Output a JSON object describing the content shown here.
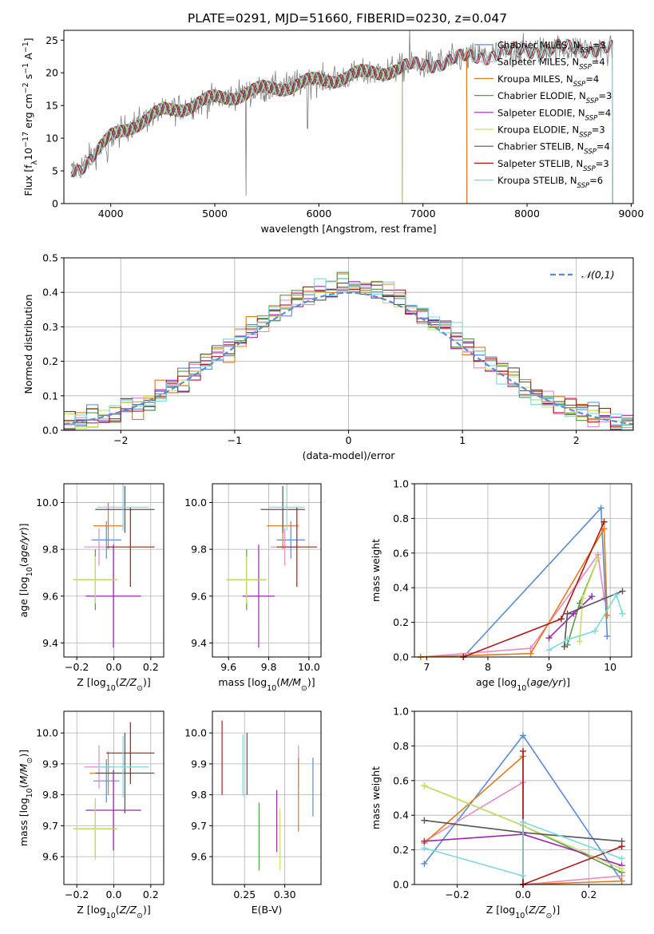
{
  "colors": {
    "Chabrier MILES": "#5b8bd6",
    "Salpeter MILES": "#e68ac3",
    "Kroupa MILES": "#e07b18",
    "Chabrier ELODIE": "#5a9a47",
    "Salpeter ELODIE": "#9b27b0",
    "Kroupa ELODIE": "#c9e067",
    "Chabrier STELIB": "#555555",
    "Salpeter STELIB": "#b01818",
    "Kroupa STELIB": "#7fd8dc"
  },
  "chart_data": [
    {
      "id": "spectrum",
      "type": "line",
      "title": "PLATE=0291, MJD=51660, FIBERID=0230, z=0.047",
      "xlabel": "wavelength [Angstrom, rest frame]",
      "ylabel": "Flux [f_λ10^-17 erg cm^-2 s^-1 A^-1]",
      "xlim": [
        3550,
        9020
      ],
      "ylim": [
        0,
        26.5
      ],
      "xticks": [
        4000,
        5000,
        6000,
        7000,
        8000,
        9000
      ],
      "yticks": [
        0,
        5,
        10,
        15,
        20,
        25
      ],
      "legend_position": "top-right",
      "legend": [
        {
          "name": "Chabrier MILES",
          "nssp": "3"
        },
        {
          "name": "Salpeter MILES",
          "nssp": "4"
        },
        {
          "name": "Kroupa MILES",
          "nssp": "4"
        },
        {
          "name": "Chabrier ELODIE",
          "nssp": "3"
        },
        {
          "name": "Salpeter ELODIE",
          "nssp": "4"
        },
        {
          "name": "Kroupa ELODIE",
          "nssp": "3"
        },
        {
          "name": "Chabrier STELIB",
          "nssp": "4"
        },
        {
          "name": "Salpeter STELIB",
          "nssp": "3"
        },
        {
          "name": "Kroupa STELIB",
          "nssp": "6"
        }
      ],
      "continuum": [
        [
          3620,
          5.0
        ],
        [
          3700,
          5.5
        ],
        [
          3800,
          7.0
        ],
        [
          3900,
          8.5
        ],
        [
          4000,
          10.0
        ],
        [
          4200,
          12.0
        ],
        [
          4500,
          14.0
        ],
        [
          5000,
          16.0
        ],
        [
          5500,
          17.5
        ],
        [
          6000,
          18.8
        ],
        [
          6500,
          20.0
        ],
        [
          7000,
          21.2
        ],
        [
          7500,
          22.5
        ],
        [
          8000,
          23.5
        ],
        [
          8500,
          23.8
        ],
        [
          8800,
          23.5
        ]
      ],
      "model_ranges": {
        "Chabrier MILES": [
          3620,
          7420
        ],
        "Salpeter MILES": [
          3620,
          7420
        ],
        "Kroupa MILES": [
          3620,
          7420
        ],
        "Chabrier ELODIE": [
          3880,
          6800
        ],
        "Salpeter ELODIE": [
          3880,
          6800
        ],
        "Kroupa ELODIE": [
          3880,
          6800
        ],
        "Chabrier STELIB": [
          3620,
          8820
        ],
        "Salpeter STELIB": [
          3620,
          8820
        ],
        "Kroupa STELIB": [
          3620,
          8820
        ]
      }
    },
    {
      "id": "residuals",
      "type": "line",
      "xlabel": "(data-model)/error",
      "ylabel": "Normed distribution",
      "xlim": [
        -2.5,
        2.5
      ],
      "ylim": [
        0,
        0.5
      ],
      "xticks": [
        -2,
        -1,
        0,
        1,
        2
      ],
      "yticks": [
        0.0,
        0.1,
        0.2,
        0.3,
        0.4,
        0.5
      ],
      "grid": true,
      "legend_position": "top-right",
      "reference_curve": {
        "name": "𝒩(0,1)",
        "mean": 0,
        "sigma": 1
      },
      "bin_width": 0.1
    },
    {
      "id": "age_vs_Z",
      "type": "scatter",
      "xlabel": "Z [log10(Z/Z⊙)]",
      "ylabel": "age  [log10(age/yr)]",
      "xlim": [
        -0.27,
        0.27
      ],
      "ylim": [
        9.34,
        10.08
      ],
      "xticks": [
        -0.2,
        0.0,
        0.2
      ],
      "yticks": [
        9.4,
        9.6,
        9.8,
        10.0
      ],
      "grid": true,
      "points": [
        {
          "model": "Chabrier MILES",
          "x": -0.04,
          "xerr": 0.08,
          "y": 9.84,
          "yerr": 0.08
        },
        {
          "model": "Salpeter MILES",
          "x": -0.08,
          "xerr": 0.08,
          "y": 9.81,
          "yerr": 0.08
        },
        {
          "model": "Kroupa MILES",
          "x": -0.03,
          "xerr": 0.08,
          "y": 9.9,
          "yerr": 0.1
        },
        {
          "model": "Chabrier ELODIE",
          "x": -0.1,
          "xerr": 0.12,
          "y": 9.67,
          "yerr": 0.13
        },
        {
          "model": "Salpeter ELODIE",
          "x": -0.002,
          "xerr": 0.15,
          "y": 9.6,
          "yerr": 0.22
        },
        {
          "model": "Kroupa ELODIE",
          "x": -0.1,
          "xerr": 0.12,
          "y": 9.67,
          "yerr": 0.1
        },
        {
          "model": "Chabrier STELIB",
          "x": 0.06,
          "xerr": 0.16,
          "y": 9.97,
          "yerr": 0.1
        },
        {
          "model": "Salpeter STELIB",
          "x": 0.09,
          "xerr": 0.13,
          "y": 9.81,
          "yerr": 0.17
        },
        {
          "model": "Kroupa STELIB",
          "x": 0.05,
          "xerr": 0.14,
          "y": 9.98,
          "yerr": 0.1
        }
      ]
    },
    {
      "id": "age_vs_mass",
      "type": "scatter",
      "xlabel": "mass [log10(M/M⊙)]",
      "xlim": [
        9.52,
        10.06
      ],
      "ylim": [
        9.34,
        10.08
      ],
      "xticks": [
        9.6,
        9.8,
        10.0
      ],
      "yticks": [
        9.4,
        9.6,
        9.8,
        10.0
      ],
      "grid": true,
      "points": [
        {
          "model": "Chabrier MILES",
          "x": 9.91,
          "xerr": 0.07,
          "y": 9.84,
          "yerr": 0.08
        },
        {
          "model": "Salpeter MILES",
          "x": 9.88,
          "xerr": 0.07,
          "y": 9.81,
          "yerr": 0.08
        },
        {
          "model": "Kroupa MILES",
          "x": 9.87,
          "xerr": 0.08,
          "y": 9.9,
          "yerr": 0.1
        },
        {
          "model": "Chabrier ELODIE",
          "x": 9.69,
          "xerr": 0.1,
          "y": 9.67,
          "yerr": 0.13
        },
        {
          "model": "Salpeter ELODIE",
          "x": 9.75,
          "xerr": 0.08,
          "y": 9.6,
          "yerr": 0.22
        },
        {
          "model": "Kroupa ELODIE",
          "x": 9.69,
          "xerr": 0.1,
          "y": 9.67,
          "yerr": 0.1
        },
        {
          "model": "Chabrier STELIB",
          "x": 9.87,
          "xerr": 0.11,
          "y": 9.97,
          "yerr": 0.1
        },
        {
          "model": "Salpeter STELIB",
          "x": 9.94,
          "xerr": 0.1,
          "y": 9.81,
          "yerr": 0.17
        },
        {
          "model": "Kroupa STELIB",
          "x": 9.89,
          "xerr": 0.09,
          "y": 9.98,
          "yerr": 0.1
        }
      ]
    },
    {
      "id": "weight_vs_age",
      "type": "line",
      "xlabel": "age  [log10(age/yr)]",
      "ylabel": "mass weight",
      "xlim": [
        6.8,
        10.35
      ],
      "ylim": [
        0,
        1.0
      ],
      "xticks": [
        7,
        8,
        9,
        10
      ],
      "yticks": [
        0.0,
        0.2,
        0.4,
        0.6,
        0.8,
        1.0
      ],
      "grid": true,
      "series": [
        {
          "name": "Chabrier MILES",
          "x": [
            7.6,
            9.85,
            9.95
          ],
          "y": [
            0.0,
            0.86,
            0.12
          ]
        },
        {
          "name": "Salpeter MILES",
          "x": [
            6.9,
            8.7,
            9.8,
            9.9
          ],
          "y": [
            0.0,
            0.05,
            0.59,
            0.34
          ]
        },
        {
          "name": "Kroupa MILES",
          "x": [
            6.9,
            8.7,
            9.9,
            9.95
          ],
          "y": [
            0.0,
            0.02,
            0.74,
            0.24
          ]
        },
        {
          "name": "Chabrier ELODIE",
          "x": [
            9.3,
            9.5,
            9.8
          ],
          "y": [
            0.07,
            0.31,
            0.57
          ]
        },
        {
          "name": "Salpeter ELODIE",
          "x": [
            9.0,
            9.4,
            9.7
          ],
          "y": [
            0.11,
            0.25,
            0.35
          ]
        },
        {
          "name": "Kroupa ELODIE",
          "x": [
            9.5,
            9.55,
            9.8
          ],
          "y": [
            0.09,
            0.34,
            0.57
          ]
        },
        {
          "name": "Chabrier STELIB",
          "x": [
            9.25,
            9.3,
            10.2
          ],
          "y": [
            0.06,
            0.25,
            0.38
          ]
        },
        {
          "name": "Salpeter STELIB",
          "x": [
            7.6,
            9.2,
            9.9
          ],
          "y": [
            0.0,
            0.22,
            0.78
          ]
        },
        {
          "name": "Kroupa STELIB",
          "x": [
            9.0,
            9.3,
            9.75,
            10.1,
            10.2
          ],
          "y": [
            0.04,
            0.1,
            0.15,
            0.36,
            0.25
          ]
        }
      ]
    },
    {
      "id": "mass_vs_Z",
      "type": "scatter",
      "xlabel": "Z [log10(Z/Z⊙)]",
      "ylabel": "mass [log10(M/M⊙)]",
      "xlim": [
        -0.27,
        0.27
      ],
      "ylim": [
        9.51,
        10.07
      ],
      "xticks": [
        -0.2,
        0.0,
        0.2
      ],
      "yticks": [
        9.6,
        9.7,
        9.8,
        9.9,
        10.0
      ],
      "grid": true,
      "points": [
        {
          "model": "Chabrier MILES",
          "x": -0.04,
          "xerr": 0.07,
          "y": 9.845,
          "yerr": 0.07
        },
        {
          "model": "Salpeter MILES",
          "x": -0.08,
          "xerr": 0.08,
          "y": 9.89,
          "yerr": 0.07
        },
        {
          "model": "Kroupa MILES",
          "x": -0.03,
          "xerr": 0.1,
          "y": 9.87,
          "yerr": 0.07
        },
        {
          "model": "Chabrier ELODIE",
          "x": -0.1,
          "xerr": 0.12,
          "y": 9.69,
          "yerr": 0.09
        },
        {
          "model": "Salpeter ELODIE",
          "x": -0.002,
          "xerr": 0.15,
          "y": 9.75,
          "yerr": 0.13
        },
        {
          "model": "Kroupa ELODIE",
          "x": -0.1,
          "xerr": 0.12,
          "y": 9.69,
          "yerr": 0.1
        },
        {
          "model": "Chabrier STELIB",
          "x": 0.06,
          "xerr": 0.16,
          "y": 9.87,
          "yerr": 0.13
        },
        {
          "model": "Salpeter STELIB",
          "x": 0.09,
          "xerr": 0.13,
          "y": 9.935,
          "yerr": 0.1
        },
        {
          "model": "Kroupa STELIB",
          "x": 0.05,
          "xerr": 0.14,
          "y": 9.89,
          "yerr": 0.1
        }
      ]
    },
    {
      "id": "mass_vs_ebv",
      "type": "scatter",
      "xlabel": "E(B-V)",
      "xlim": [
        0.21,
        0.345
      ],
      "ylim": [
        9.51,
        10.07
      ],
      "xticks": [
        0.25,
        0.3
      ],
      "yticks": [
        9.6,
        9.7,
        9.8,
        9.9,
        10.0
      ],
      "grid": true,
      "points": [
        {
          "model": "Chabrier MILES",
          "x": 0.335,
          "y": 9.825,
          "yerr": 0.095
        },
        {
          "model": "Salpeter MILES",
          "x": 0.317,
          "y": 9.89,
          "yerr": 0.07
        },
        {
          "model": "Kroupa MILES",
          "x": 0.317,
          "y": 9.8,
          "yerr": 0.12
        },
        {
          "model": "Chabrier ELODIE",
          "x": 0.268,
          "y": 9.665,
          "yerr": 0.11
        },
        {
          "model": "Salpeter ELODIE",
          "x": 0.29,
          "y": 9.715,
          "yerr": 0.1
        },
        {
          "model": "Kroupa ELODIE",
          "x": 0.294,
          "y": 9.655,
          "yerr": 0.1
        },
        {
          "model": "Chabrier STELIB",
          "x": 0.253,
          "y": 9.9,
          "yerr": 0.1
        },
        {
          "model": "Salpeter STELIB",
          "x": 0.222,
          "y": 9.92,
          "yerr": 0.12
        },
        {
          "model": "Kroupa STELIB",
          "x": 0.248,
          "y": 9.895,
          "yerr": 0.1
        }
      ]
    },
    {
      "id": "weight_vs_Z",
      "type": "line",
      "xlabel": "Z [log10(Z/Z⊙)]",
      "ylabel": "mass weight",
      "xlim": [
        -0.33,
        0.33
      ],
      "ylim": [
        0,
        1.0
      ],
      "xticks": [
        -0.2,
        0.0,
        0.2
      ],
      "yticks": [
        0.0,
        0.2,
        0.4,
        0.6,
        0.8,
        1.0
      ],
      "grid": true,
      "series": [
        {
          "name": "Chabrier MILES",
          "x": [
            -0.3,
            0.0,
            0.3
          ],
          "y": [
            0.12,
            0.86,
            0.02
          ]
        },
        {
          "name": "Salpeter MILES",
          "x": [
            -0.3,
            0.0,
            0.0,
            0.3
          ],
          "y": [
            0.25,
            0.59,
            0.0,
            0.05
          ]
        },
        {
          "name": "Kroupa MILES",
          "x": [
            -0.3,
            0.0,
            0.0,
            0.3
          ],
          "y": [
            0.24,
            0.74,
            0.0,
            0.02
          ]
        },
        {
          "name": "Chabrier ELODIE",
          "x": [
            -0.3,
            0.0,
            0.3
          ],
          "y": [
            0.57,
            0.34,
            0.07
          ]
        },
        {
          "name": "Salpeter ELODIE",
          "x": [
            -0.3,
            0.0,
            0.3
          ],
          "y": [
            0.25,
            0.29,
            0.11
          ]
        },
        {
          "name": "Kroupa ELODIE",
          "x": [
            -0.3,
            0.0,
            0.3
          ],
          "y": [
            0.57,
            0.34,
            0.09
          ]
        },
        {
          "name": "Chabrier STELIB",
          "x": [
            -0.3,
            0.0,
            0.3
          ],
          "y": [
            0.37,
            0.3,
            0.25
          ]
        },
        {
          "name": "Salpeter STELIB",
          "x": [
            0.0,
            0.0,
            0.3
          ],
          "y": [
            0.77,
            0.0,
            0.22
          ]
        },
        {
          "name": "Kroupa STELIB",
          "x": [
            -0.3,
            0.0,
            0.0,
            0.3
          ],
          "y": [
            0.21,
            0.05,
            0.36,
            0.15
          ]
        }
      ]
    }
  ]
}
